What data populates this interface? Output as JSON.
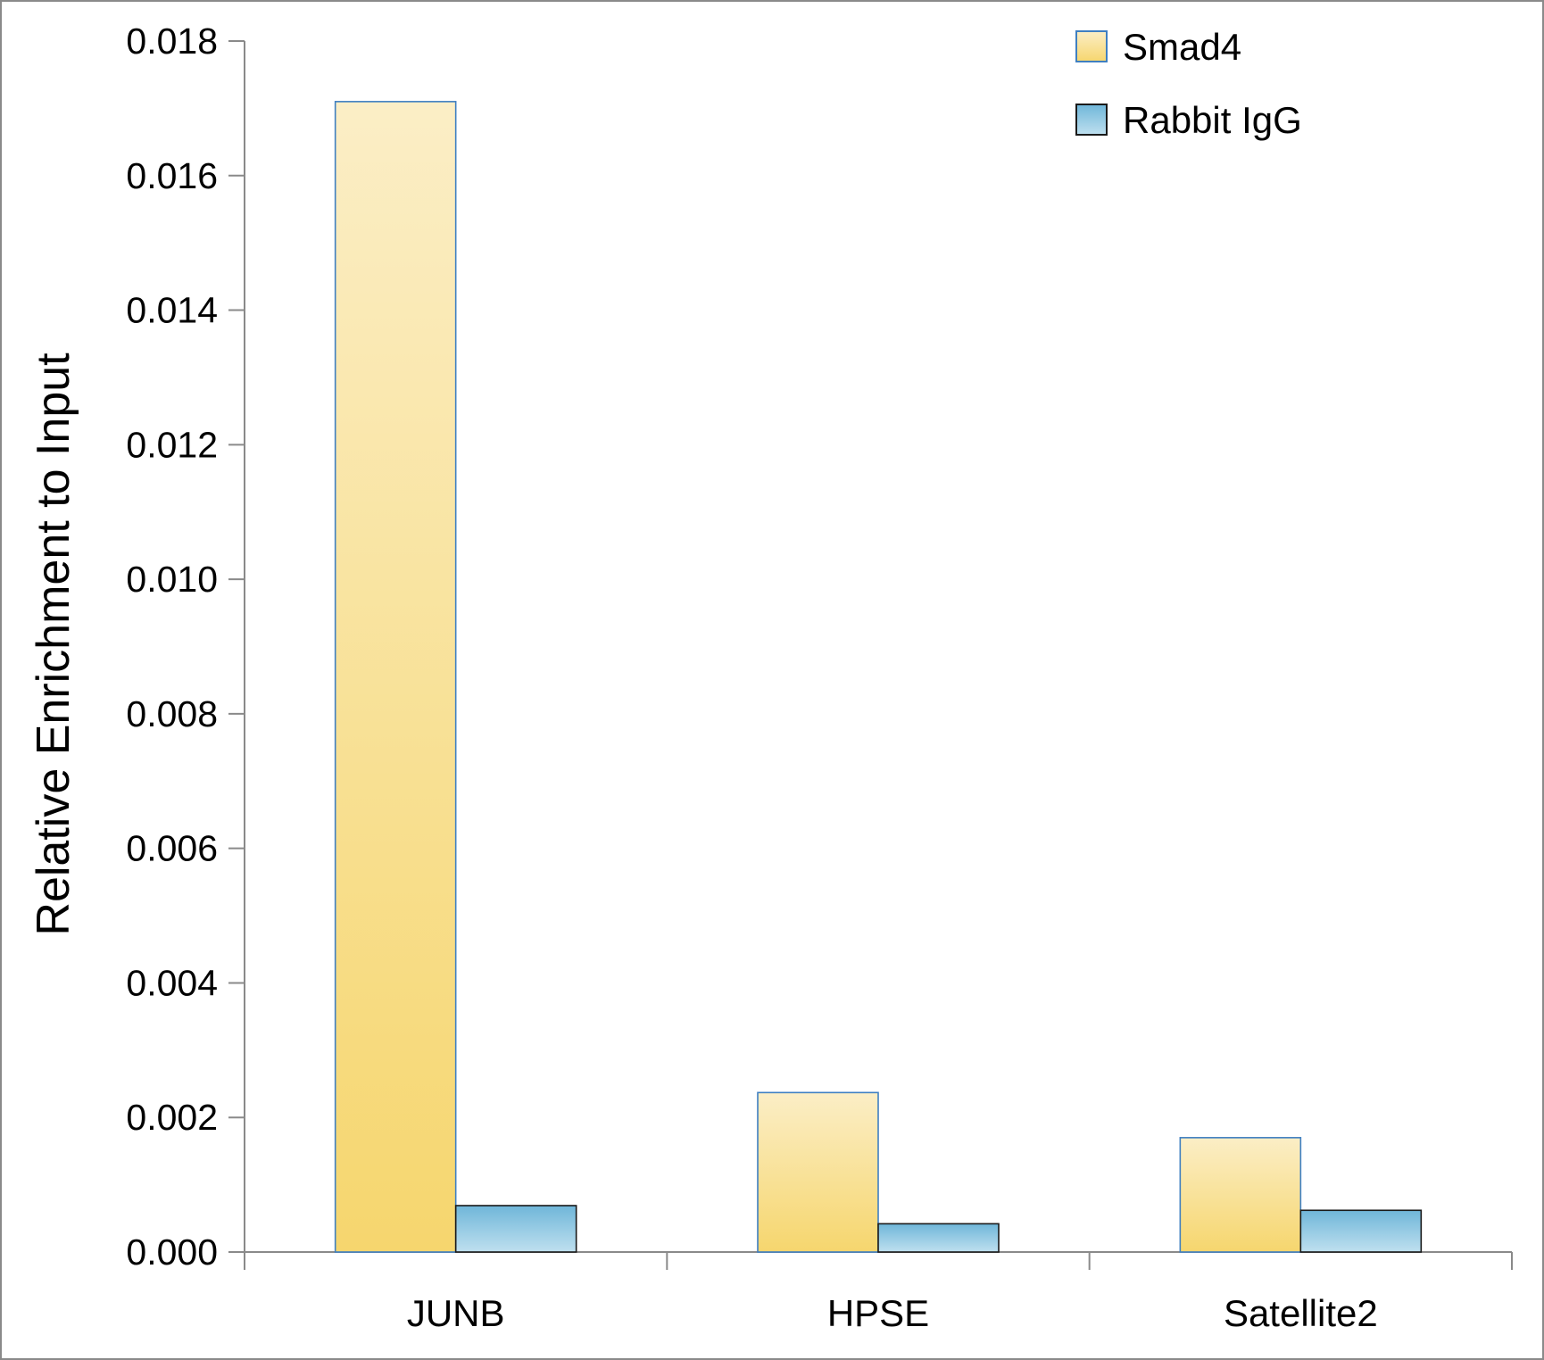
{
  "chart_data": {
    "type": "bar",
    "title": "",
    "xlabel": "",
    "ylabel": "Relative Enrichment to Input",
    "categories": [
      "JUNB",
      "HPSE",
      "Satellite2"
    ],
    "series": [
      {
        "name": "Smad4",
        "values": [
          0.0171,
          0.00237,
          0.0017
        ]
      },
      {
        "name": "Rabbit IgG",
        "values": [
          0.00069,
          0.00042,
          0.00062
        ]
      }
    ],
    "ylim": [
      0,
      0.018
    ],
    "yticks": [
      "0.000",
      "0.002",
      "0.004",
      "0.006",
      "0.008",
      "0.010",
      "0.012",
      "0.014",
      "0.016",
      "0.018"
    ],
    "grid": false,
    "legend_position": "top-right",
    "colors": {
      "Smad4": {
        "top": "#fbeec6",
        "bottom": "#f6d66e",
        "stroke": "#3f7fc1"
      },
      "Rabbit IgG": {
        "top": "#6fb6d9",
        "bottom": "#bfe0ef",
        "stroke": "#1a1a1a"
      },
      "axis": "#8a8a8a"
    }
  }
}
